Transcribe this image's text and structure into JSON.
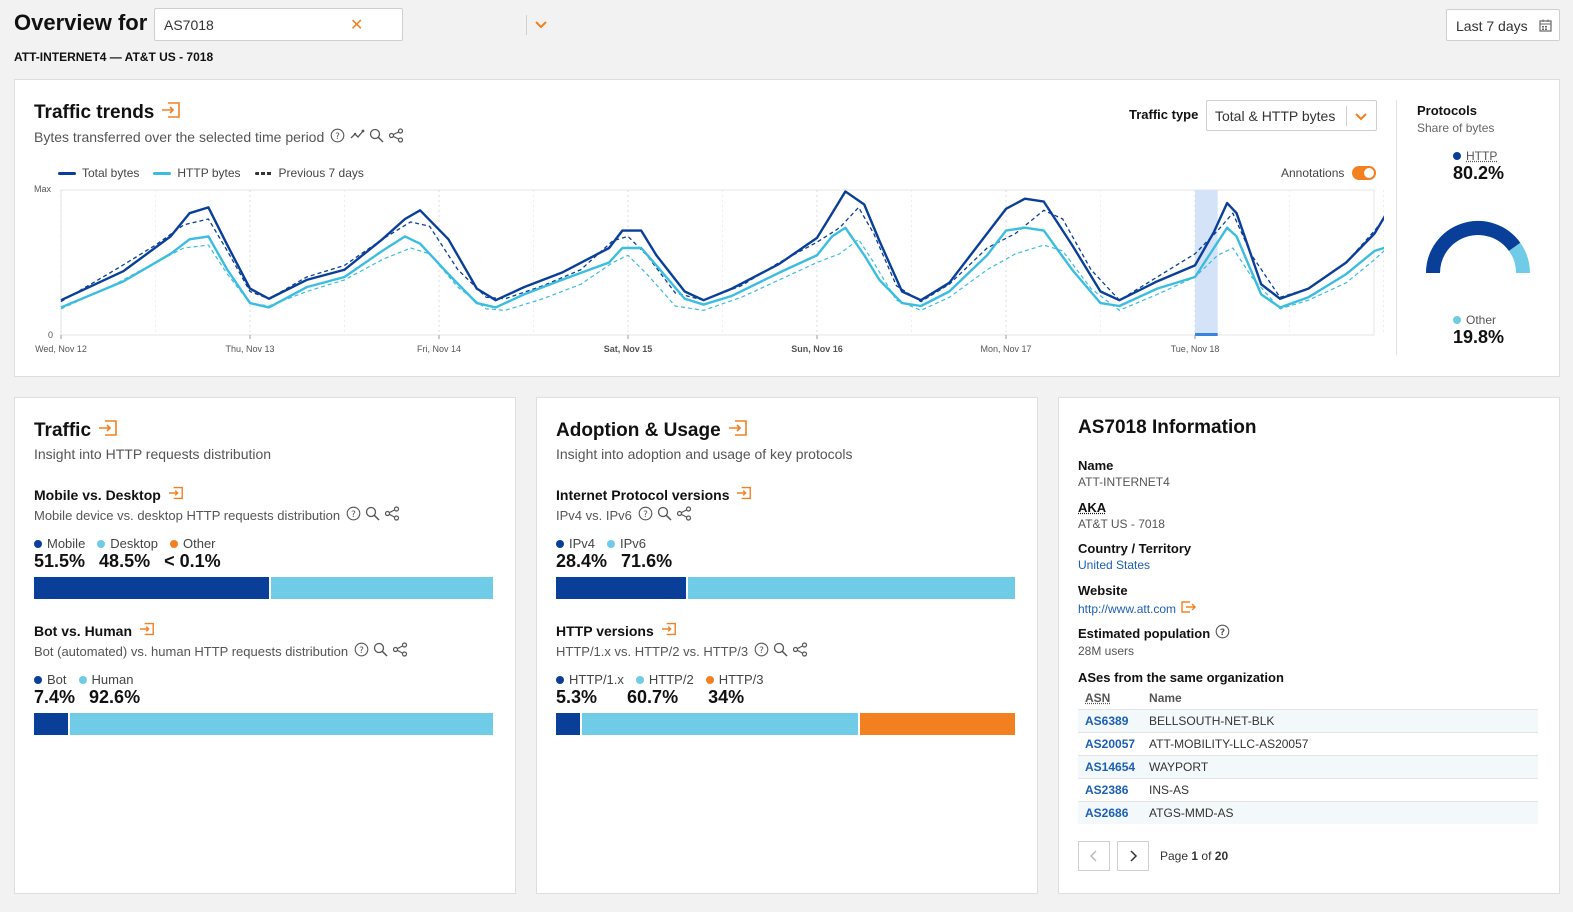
{
  "header": {
    "title": "Overview for",
    "asn_value": "AS7018",
    "date_range": "Last 7 days",
    "subtitle": "ATT-INTERNET4 — AT&T US - 7018"
  },
  "trends": {
    "title": "Traffic trends",
    "description": "Bytes transferred over the selected time period",
    "traffic_type_label": "Traffic type",
    "traffic_type_value": "Total & HTTP bytes",
    "annotations_label": "Annotations",
    "legend": [
      {
        "name": "Total bytes",
        "color": "#0a3f99",
        "style": "solid"
      },
      {
        "name": "HTTP bytes",
        "color": "#3bbde0",
        "style": "solid"
      },
      {
        "name": "Previous 7 days",
        "color": "#333333",
        "style": "dashed"
      }
    ],
    "y_max_label": "Max",
    "y_zero_label": "0",
    "x_labels": [
      "Wed, Nov 12",
      "Thu, Nov 13",
      "Fri, Nov 14",
      "Sat, Nov 15",
      "Sun, Nov 16",
      "Mon, Nov 17",
      "Tue, Nov 18"
    ],
    "bold_x_labels": [
      3,
      4
    ]
  },
  "chart_data": {
    "type": "line",
    "ylim": [
      0,
      1
    ],
    "y_axis_labels": [
      "0",
      "Max"
    ],
    "x_ticks": [
      "Wed, Nov 12",
      "Thu, Nov 13",
      "Fri, Nov 14",
      "Sat, Nov 15",
      "Sun, Nov 16",
      "Mon, Nov 17",
      "Tue, Nov 18"
    ],
    "x_range_days": [
      0,
      7
    ],
    "series": [
      {
        "name": "Total bytes",
        "color": "#0a3f99",
        "points": [
          [
            0.0,
            0.24
          ],
          [
            0.33,
            0.44
          ],
          [
            0.58,
            0.68
          ],
          [
            0.68,
            0.84
          ],
          [
            0.78,
            0.88
          ],
          [
            0.88,
            0.62
          ],
          [
            1.0,
            0.32
          ],
          [
            1.1,
            0.25
          ],
          [
            1.3,
            0.38
          ],
          [
            1.5,
            0.45
          ],
          [
            1.7,
            0.66
          ],
          [
            1.82,
            0.8
          ],
          [
            1.9,
            0.86
          ],
          [
            2.05,
            0.66
          ],
          [
            2.2,
            0.32
          ],
          [
            2.3,
            0.24
          ],
          [
            2.45,
            0.33
          ],
          [
            2.65,
            0.43
          ],
          [
            2.9,
            0.6
          ],
          [
            2.97,
            0.72
          ],
          [
            3.07,
            0.72
          ],
          [
            3.15,
            0.55
          ],
          [
            3.3,
            0.3
          ],
          [
            3.4,
            0.24
          ],
          [
            3.55,
            0.32
          ],
          [
            3.8,
            0.49
          ],
          [
            4.0,
            0.67
          ],
          [
            4.08,
            0.84
          ],
          [
            4.15,
            0.99
          ],
          [
            4.25,
            0.9
          ],
          [
            4.33,
            0.65
          ],
          [
            4.45,
            0.3
          ],
          [
            4.55,
            0.24
          ],
          [
            4.7,
            0.36
          ],
          [
            4.9,
            0.7
          ],
          [
            5.0,
            0.87
          ],
          [
            5.1,
            0.94
          ],
          [
            5.2,
            0.92
          ],
          [
            5.35,
            0.62
          ],
          [
            5.5,
            0.3
          ],
          [
            5.6,
            0.24
          ],
          [
            5.8,
            0.37
          ],
          [
            6.0,
            0.48
          ],
          [
            6.1,
            0.71
          ],
          [
            6.17,
            0.91
          ],
          [
            6.22,
            0.84
          ],
          [
            6.35,
            0.35
          ],
          [
            6.45,
            0.25
          ],
          [
            6.6,
            0.32
          ],
          [
            6.8,
            0.5
          ],
          [
            6.95,
            0.7
          ],
          [
            7.05,
            0.92
          ],
          [
            7.17,
            0.84
          ],
          [
            7.27,
            0.5
          ],
          [
            7.35,
            0.3
          ],
          [
            7.4,
            0.25
          ]
        ]
      },
      {
        "name": "HTTP bytes",
        "color": "#3bbde0",
        "points": [
          [
            0.0,
            0.19
          ],
          [
            0.33,
            0.37
          ],
          [
            0.58,
            0.56
          ],
          [
            0.68,
            0.66
          ],
          [
            0.78,
            0.68
          ],
          [
            0.88,
            0.45
          ],
          [
            1.0,
            0.22
          ],
          [
            1.1,
            0.19
          ],
          [
            1.3,
            0.33
          ],
          [
            1.5,
            0.4
          ],
          [
            1.7,
            0.58
          ],
          [
            1.82,
            0.68
          ],
          [
            1.9,
            0.63
          ],
          [
            2.05,
            0.42
          ],
          [
            2.2,
            0.22
          ],
          [
            2.3,
            0.19
          ],
          [
            2.45,
            0.28
          ],
          [
            2.65,
            0.38
          ],
          [
            2.9,
            0.5
          ],
          [
            2.97,
            0.6
          ],
          [
            3.07,
            0.6
          ],
          [
            3.15,
            0.48
          ],
          [
            3.3,
            0.25
          ],
          [
            3.4,
            0.21
          ],
          [
            3.55,
            0.27
          ],
          [
            3.8,
            0.43
          ],
          [
            4.0,
            0.55
          ],
          [
            4.08,
            0.68
          ],
          [
            4.15,
            0.74
          ],
          [
            4.25,
            0.55
          ],
          [
            4.33,
            0.38
          ],
          [
            4.45,
            0.22
          ],
          [
            4.55,
            0.2
          ],
          [
            4.7,
            0.3
          ],
          [
            4.9,
            0.55
          ],
          [
            5.0,
            0.72
          ],
          [
            5.1,
            0.74
          ],
          [
            5.2,
            0.72
          ],
          [
            5.35,
            0.45
          ],
          [
            5.5,
            0.22
          ],
          [
            5.6,
            0.2
          ],
          [
            5.8,
            0.32
          ],
          [
            6.0,
            0.4
          ],
          [
            6.1,
            0.6
          ],
          [
            6.17,
            0.74
          ],
          [
            6.22,
            0.68
          ],
          [
            6.35,
            0.28
          ],
          [
            6.45,
            0.19
          ],
          [
            6.6,
            0.26
          ],
          [
            6.8,
            0.42
          ],
          [
            6.95,
            0.58
          ],
          [
            7.05,
            0.62
          ],
          [
            7.17,
            0.64
          ],
          [
            7.27,
            0.38
          ],
          [
            7.35,
            0.24
          ],
          [
            7.4,
            0.2
          ]
        ]
      },
      {
        "name": "Previous 7 days",
        "color": "#333333",
        "points": [
          [
            0.0,
            0.23
          ],
          [
            0.3,
            0.46
          ],
          [
            0.5,
            0.62
          ],
          [
            0.65,
            0.76
          ],
          [
            0.78,
            0.8
          ],
          [
            0.88,
            0.58
          ],
          [
            1.0,
            0.3
          ],
          [
            1.1,
            0.25
          ],
          [
            1.3,
            0.4
          ],
          [
            1.5,
            0.48
          ],
          [
            1.7,
            0.66
          ],
          [
            1.85,
            0.78
          ],
          [
            1.95,
            0.75
          ],
          [
            2.1,
            0.45
          ],
          [
            2.25,
            0.26
          ],
          [
            2.35,
            0.25
          ],
          [
            2.55,
            0.34
          ],
          [
            2.75,
            0.45
          ],
          [
            2.92,
            0.65
          ],
          [
            3.0,
            0.68
          ],
          [
            3.1,
            0.55
          ],
          [
            3.25,
            0.29
          ],
          [
            3.4,
            0.24
          ],
          [
            3.6,
            0.34
          ],
          [
            3.8,
            0.5
          ],
          [
            4.0,
            0.64
          ],
          [
            4.12,
            0.74
          ],
          [
            4.22,
            0.88
          ],
          [
            4.3,
            0.7
          ],
          [
            4.42,
            0.34
          ],
          [
            4.55,
            0.23
          ],
          [
            4.7,
            0.35
          ],
          [
            4.9,
            0.6
          ],
          [
            5.05,
            0.7
          ],
          [
            5.2,
            0.86
          ],
          [
            5.3,
            0.8
          ],
          [
            5.45,
            0.45
          ],
          [
            5.6,
            0.24
          ],
          [
            5.8,
            0.4
          ],
          [
            6.0,
            0.56
          ],
          [
            6.12,
            0.72
          ],
          [
            6.2,
            0.84
          ],
          [
            6.3,
            0.55
          ],
          [
            6.45,
            0.26
          ],
          [
            6.6,
            0.32
          ],
          [
            6.8,
            0.5
          ],
          [
            6.95,
            0.72
          ],
          [
            7.05,
            0.88
          ],
          [
            7.15,
            0.82
          ],
          [
            7.27,
            0.45
          ],
          [
            7.4,
            0.24
          ]
        ]
      },
      {
        "name": "HTTP bytes (previous)",
        "color": "#3bbde0",
        "points": [
          [
            0.0,
            0.18
          ],
          [
            0.3,
            0.36
          ],
          [
            0.5,
            0.5
          ],
          [
            0.65,
            0.6
          ],
          [
            0.78,
            0.62
          ],
          [
            0.88,
            0.42
          ],
          [
            1.0,
            0.22
          ],
          [
            1.1,
            0.2
          ],
          [
            1.3,
            0.3
          ],
          [
            1.5,
            0.38
          ],
          [
            1.7,
            0.52
          ],
          [
            1.85,
            0.6
          ],
          [
            1.95,
            0.56
          ],
          [
            2.1,
            0.33
          ],
          [
            2.25,
            0.18
          ],
          [
            2.35,
            0.17
          ],
          [
            2.55,
            0.25
          ],
          [
            2.75,
            0.35
          ],
          [
            2.92,
            0.5
          ],
          [
            3.0,
            0.55
          ],
          [
            3.1,
            0.42
          ],
          [
            3.25,
            0.2
          ],
          [
            3.4,
            0.17
          ],
          [
            3.6,
            0.26
          ],
          [
            3.8,
            0.38
          ],
          [
            4.0,
            0.5
          ],
          [
            4.12,
            0.56
          ],
          [
            4.22,
            0.66
          ],
          [
            4.3,
            0.5
          ],
          [
            4.42,
            0.24
          ],
          [
            4.55,
            0.17
          ],
          [
            4.7,
            0.26
          ],
          [
            4.9,
            0.45
          ],
          [
            5.05,
            0.56
          ],
          [
            5.2,
            0.62
          ],
          [
            5.3,
            0.58
          ],
          [
            5.45,
            0.32
          ],
          [
            5.6,
            0.17
          ],
          [
            5.8,
            0.28
          ],
          [
            6.0,
            0.4
          ],
          [
            6.12,
            0.55
          ],
          [
            6.2,
            0.6
          ],
          [
            6.3,
            0.4
          ],
          [
            6.45,
            0.18
          ],
          [
            6.6,
            0.24
          ],
          [
            6.8,
            0.36
          ],
          [
            6.95,
            0.52
          ],
          [
            7.05,
            0.64
          ],
          [
            7.15,
            0.6
          ],
          [
            7.27,
            0.32
          ],
          [
            7.4,
            0.17
          ]
        ]
      }
    ],
    "highlight_range_days": [
      6.0,
      6.12
    ]
  },
  "protocols": {
    "title": "Protocols",
    "subtitle": "Share of bytes",
    "http_label": "HTTP",
    "http_value": "80.2%",
    "http_share": 0.802,
    "other_label": "Other",
    "other_value": "19.8%",
    "http_color": "#0a3f99",
    "other_color": "#6fcbe6"
  },
  "traffic": {
    "title": "Traffic",
    "description": "Insight into HTTP requests distribution",
    "mobile_desktop": {
      "title": "Mobile vs. Desktop",
      "description": "Mobile device vs. desktop HTTP requests distribution",
      "items": [
        {
          "label": "Mobile",
          "value": "51.5%",
          "share": 51.5,
          "color": "#0a3f99"
        },
        {
          "label": "Desktop",
          "value": "48.5%",
          "share": 48.5,
          "color": "#6fcbe6"
        },
        {
          "label": "Other",
          "value": "< 0.1%",
          "share": 0,
          "color": "#f38020"
        }
      ]
    },
    "bot_human": {
      "title": "Bot vs. Human",
      "description": "Bot (automated) vs. human HTTP requests distribution",
      "items": [
        {
          "label": "Bot",
          "value": "7.4%",
          "share": 7.4,
          "color": "#0a3f99"
        },
        {
          "label": "Human",
          "value": "92.6%",
          "share": 92.6,
          "color": "#6fcbe6"
        }
      ]
    }
  },
  "adoption": {
    "title": "Adoption & Usage",
    "description": "Insight into adoption and usage of key protocols",
    "ip_versions": {
      "title": "Internet Protocol versions",
      "description": "IPv4 vs. IPv6",
      "items": [
        {
          "label": "IPv4",
          "value": "28.4%",
          "share": 28.4,
          "color": "#0a3f99"
        },
        {
          "label": "IPv6",
          "value": "71.6%",
          "share": 71.6,
          "color": "#6fcbe6"
        }
      ]
    },
    "http_versions": {
      "title": "HTTP versions",
      "description": "HTTP/1.x vs. HTTP/2 vs. HTTP/3",
      "items": [
        {
          "label": "HTTP/1.x",
          "value": "5.3%",
          "share": 5.3,
          "color": "#0a3f99"
        },
        {
          "label": "HTTP/2",
          "value": "60.7%",
          "share": 60.7,
          "color": "#6fcbe6"
        },
        {
          "label": "HTTP/3",
          "value": "34%",
          "share": 34,
          "color": "#f38020"
        }
      ]
    }
  },
  "info": {
    "title": "AS7018 Information",
    "name_label": "Name",
    "name_value": "ATT-INTERNET4",
    "aka_label": "AKA",
    "aka_value": "AT&T US - 7018",
    "country_label": "Country / Territory",
    "country_value": "United States",
    "website_label": "Website",
    "website_value": "http://www.att.com",
    "population_label": "Estimated population",
    "population_value": "28M users",
    "ases_label": "ASes from the same organization",
    "table_headers": [
      "ASN",
      "Name"
    ],
    "rows": [
      {
        "asn": "AS6389",
        "name": "BELLSOUTH-NET-BLK"
      },
      {
        "asn": "AS20057",
        "name": "ATT-MOBILITY-LLC-AS20057"
      },
      {
        "asn": "AS14654",
        "name": "WAYPORT"
      },
      {
        "asn": "AS2386",
        "name": "INS-AS"
      },
      {
        "asn": "AS2686",
        "name": "ATGS-MMD-AS"
      }
    ],
    "page_word": "Page",
    "page_current": "1",
    "page_of": "of",
    "page_total": "20"
  },
  "icons": [
    "expand-icon",
    "help-icon",
    "explore-icon",
    "zoom-icon",
    "share-icon",
    "calendar-icon",
    "chevron-down-icon",
    "clear-icon",
    "external-link-icon",
    "chevron-left-icon",
    "chevron-right-icon"
  ]
}
